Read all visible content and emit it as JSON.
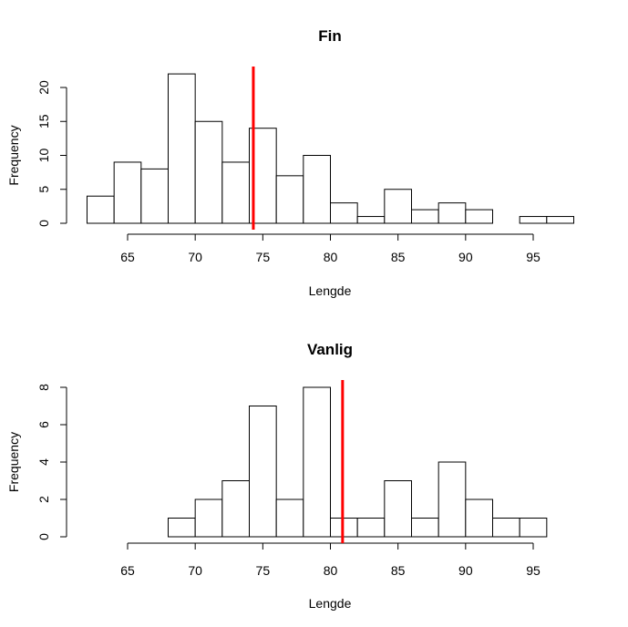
{
  "chart_data": [
    {
      "type": "bar",
      "title": "Fin",
      "xlabel": "Lengde",
      "ylabel": "Frequency",
      "bin_edges": [
        62,
        64,
        66,
        68,
        70,
        72,
        74,
        76,
        78,
        80,
        82,
        84,
        86,
        88,
        90,
        92,
        94,
        96,
        98
      ],
      "values": [
        4,
        9,
        8,
        22,
        15,
        9,
        14,
        7,
        10,
        3,
        1,
        5,
        2,
        3,
        2,
        0,
        1,
        1
      ],
      "xlim": [
        62,
        98
      ],
      "ylim": [
        0,
        23
      ],
      "xticks": [
        "65",
        "70",
        "75",
        "80",
        "85",
        "90",
        "95"
      ],
      "yticks": [
        "0",
        "5",
        "10",
        "15",
        "20"
      ],
      "vline": 74.3,
      "vline_color": "#ff0000",
      "grid": false
    },
    {
      "type": "bar",
      "title": "Vanlig",
      "xlabel": "Lengde",
      "ylabel": "Frequency",
      "bin_edges": [
        62,
        64,
        66,
        68,
        70,
        72,
        74,
        76,
        78,
        80,
        82,
        84,
        86,
        88,
        90,
        92,
        94,
        96,
        98
      ],
      "values": [
        0,
        0,
        0,
        1,
        2,
        3,
        7,
        2,
        8,
        1,
        1,
        3,
        1,
        4,
        2,
        1,
        1,
        0
      ],
      "xlim": [
        62,
        98
      ],
      "ylim": [
        0,
        8.4
      ],
      "xticks": [
        "65",
        "70",
        "75",
        "80",
        "85",
        "90",
        "95"
      ],
      "yticks": [
        "0",
        "2",
        "4",
        "6",
        "8"
      ],
      "vline": 80.9,
      "vline_color": "#ff0000",
      "grid": false
    }
  ]
}
